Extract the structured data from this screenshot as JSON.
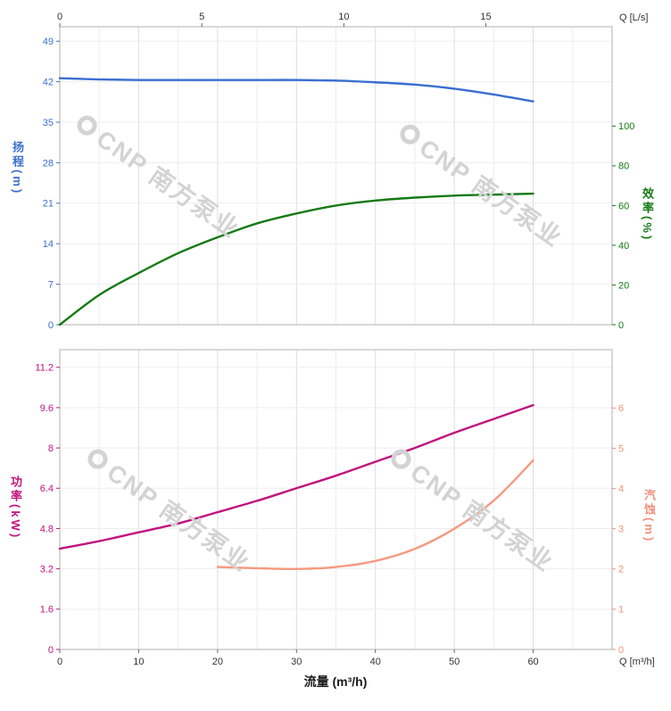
{
  "chart_data": {
    "type": "line",
    "title": "",
    "x_axis": {
      "label": "流量 (m³/h)",
      "range": [
        0,
        70
      ]
    },
    "top_axis": {
      "corner_label": "Q [L/s]",
      "ticks": [
        0,
        5,
        10,
        15
      ],
      "m3h_per_unit": 3.6,
      "color": "#333333"
    },
    "bottom_axis": {
      "corner_label": "Q [m³/h]",
      "ticks": [
        0,
        10,
        20,
        30,
        40,
        50,
        60
      ],
      "color": "#333333"
    },
    "panels": [
      {
        "name": "head-efficiency",
        "left_axis": {
          "title": "扬程",
          "unit": "(m)",
          "color": "#3a6ed0",
          "ticks": [
            0,
            7,
            14,
            21,
            28,
            35,
            42,
            49
          ],
          "range": [
            0,
            51.5
          ]
        },
        "right_axis": {
          "title": "效率",
          "unit": "(%)",
          "color": "#157a15",
          "ticks": [
            0,
            20,
            40,
            60,
            80,
            100
          ],
          "range": [
            0,
            150
          ]
        },
        "series": [
          {
            "name": "head-curve",
            "label": "扬程",
            "axis": "left",
            "color": "#3a6ed0",
            "x": [
              0,
              5,
              10,
              15,
              20,
              25,
              30,
              35,
              40,
              45,
              50,
              55,
              60
            ],
            "y": [
              42.6,
              42.4,
              42.3,
              42.3,
              42.3,
              42.3,
              42.3,
              42.2,
              41.9,
              41.5,
              40.8,
              39.8,
              38.6
            ]
          },
          {
            "name": "efficiency-curve",
            "label": "效率",
            "axis": "right",
            "color": "#157a15",
            "x": [
              0,
              5,
              10,
              15,
              20,
              25,
              30,
              35,
              40,
              45,
              50,
              55,
              60
            ],
            "y": [
              0,
              15,
              26,
              36,
              44,
              51,
              56,
              60,
              62.5,
              64,
              65,
              65.5,
              66
            ]
          }
        ]
      },
      {
        "name": "power-npsh",
        "left_axis": {
          "title": "功率",
          "unit": "(kW)",
          "color": "#c0137e",
          "ticks": [
            0,
            1.6,
            3.2,
            4.8,
            6.4,
            8,
            9.6,
            11.2
          ],
          "range": [
            0,
            11.9
          ]
        },
        "right_axis": {
          "title": "汽蚀",
          "unit": "(m)",
          "color": "#f2907a",
          "ticks": [
            0,
            1,
            2,
            3,
            4,
            5,
            6
          ],
          "range": [
            0,
            7.45
          ]
        },
        "series": [
          {
            "name": "power-curve",
            "label": "功率",
            "axis": "left",
            "color": "#c0137e",
            "x": [
              0,
              5,
              10,
              15,
              20,
              25,
              30,
              35,
              40,
              45,
              50,
              55,
              60
            ],
            "y": [
              4.0,
              4.3,
              4.65,
              5.0,
              5.45,
              5.9,
              6.4,
              6.9,
              7.45,
              8.0,
              8.6,
              9.15,
              9.7
            ]
          },
          {
            "name": "npsh-curve",
            "label": "汽蚀",
            "axis": "right",
            "color": "#f59a80",
            "x": [
              20,
              25,
              30,
              35,
              40,
              45,
              50,
              55,
              60
            ],
            "y": [
              2.05,
              2.02,
              2.0,
              2.05,
              2.2,
              2.5,
              3.0,
              3.7,
              4.7
            ]
          }
        ]
      }
    ],
    "grid": {
      "show": true,
      "x_minor_step": 5,
      "x_major_step": 10
    }
  },
  "watermark": {
    "text": "CNP 南方泵业"
  },
  "colors": {
    "background": "#ffffff",
    "frame": "#b0b0b0",
    "grid_minor": "#ededed",
    "grid_major": "#dddddd",
    "axis_text_dark": "#333333",
    "head_blue": "#3a6ed0",
    "efficiency_green": "#157a15",
    "power_magenta": "#c0137e",
    "npsh_salmon": "#f59a80"
  }
}
